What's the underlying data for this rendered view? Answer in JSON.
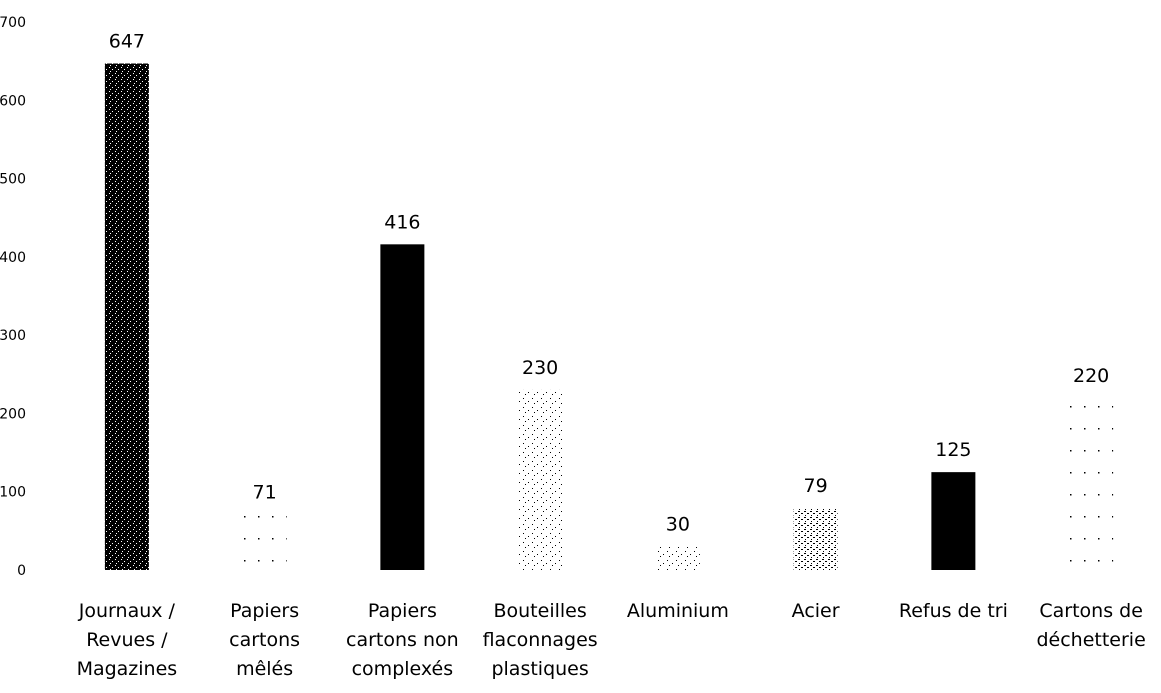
{
  "chart_data": {
    "type": "bar",
    "categories": [
      [
        "Journaux /",
        "Revues /",
        "Magazines"
      ],
      [
        "Papiers",
        "cartons",
        "mêlés"
      ],
      [
        "Papiers",
        "cartons non",
        "complexés"
      ],
      [
        "Bouteilles",
        "flaconnages",
        "plastiques"
      ],
      [
        "Aluminium"
      ],
      [
        "Acier"
      ],
      [
        "Refus de tri"
      ],
      [
        "Cartons de",
        "déchetterie"
      ]
    ],
    "values": [
      647,
      71,
      416,
      230,
      30,
      79,
      125,
      220
    ],
    "data_labels": [
      "647",
      "71",
      "416",
      "230",
      "30",
      "79",
      "125",
      "220"
    ],
    "bar_styles": [
      "dense-stipple",
      "sparse-dots",
      "solid",
      "light-stipple",
      "light-stipple",
      "medium-stipple",
      "solid",
      "sparse-dots"
    ],
    "ylim": [
      0,
      700
    ],
    "yticks": [
      0,
      100,
      200,
      300,
      400,
      500,
      600,
      700
    ],
    "title": "",
    "xlabel": "",
    "ylabel": "",
    "grid": false,
    "legend": "none",
    "colors": {
      "bar": "#000000",
      "background": "#ffffff"
    }
  }
}
